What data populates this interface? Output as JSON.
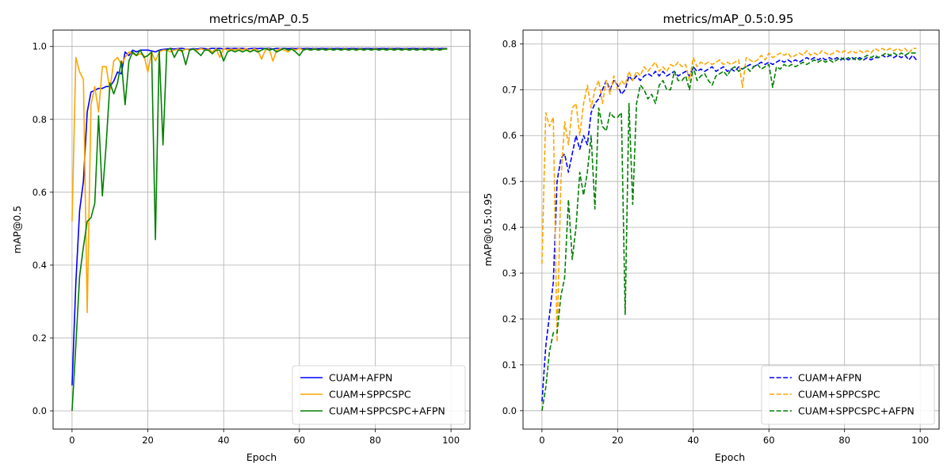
{
  "chart_data": [
    {
      "type": "line",
      "title": "metrics/mAP_0.5",
      "xlabel": "Epoch",
      "ylabel": "mAP@0.5",
      "xlim": [
        -5,
        105
      ],
      "ylim": [
        -0.05,
        1.045
      ],
      "xticks": [
        0,
        20,
        40,
        60,
        80,
        100
      ],
      "yticks": [
        0.0,
        0.2,
        0.4,
        0.6,
        0.8,
        1.0
      ],
      "grid": true,
      "legend_position": "lower-right",
      "series": [
        {
          "name": "CUAM+AFPN",
          "color": "#0000ff",
          "dash": "solid",
          "x_start": 0,
          "values": [
            0.07,
            0.35,
            0.55,
            0.63,
            0.82,
            0.875,
            0.88,
            0.885,
            0.885,
            0.89,
            0.89,
            0.905,
            0.93,
            0.925,
            0.985,
            0.975,
            0.99,
            0.985,
            0.99,
            0.99,
            0.99,
            0.988,
            0.985,
            0.99,
            0.992,
            0.993,
            0.994,
            0.993,
            0.994,
            0.995,
            0.993,
            0.992,
            0.994,
            0.993,
            0.995,
            0.994,
            0.993,
            0.995,
            0.994,
            0.995,
            0.993,
            0.995,
            0.994,
            0.995,
            0.994,
            0.995,
            0.993,
            0.994,
            0.995,
            0.994,
            0.995,
            0.994,
            0.995,
            0.993,
            0.995,
            0.994,
            0.995,
            0.994,
            0.995,
            0.994,
            0.995,
            0.994,
            0.995,
            0.994,
            0.995,
            0.994,
            0.995,
            0.994,
            0.995,
            0.994,
            0.995,
            0.994,
            0.995,
            0.994,
            0.995,
            0.994,
            0.995,
            0.994,
            0.995,
            0.994,
            0.995,
            0.994,
            0.995,
            0.994,
            0.995,
            0.994,
            0.995,
            0.994,
            0.995,
            0.994,
            0.995,
            0.994,
            0.995,
            0.994,
            0.995,
            0.994,
            0.995,
            0.994,
            0.995,
            0.994
          ]
        },
        {
          "name": "CUAM+SPPCSPC",
          "color": "#ffa500",
          "dash": "solid",
          "x_start": 0,
          "values": [
            0.52,
            0.97,
            0.93,
            0.91,
            0.27,
            0.84,
            0.89,
            0.82,
            0.945,
            0.945,
            0.88,
            0.96,
            0.97,
            0.95,
            0.97,
            0.985,
            0.98,
            0.975,
            0.98,
            0.975,
            0.93,
            0.985,
            0.96,
            0.985,
            0.99,
            0.99,
            0.985,
            0.99,
            0.993,
            0.985,
            0.994,
            0.99,
            0.993,
            0.99,
            0.994,
            0.99,
            0.993,
            0.985,
            0.994,
            0.97,
            0.995,
            0.99,
            0.993,
            0.99,
            0.994,
            0.99,
            0.995,
            0.985,
            0.994,
            0.99,
            0.965,
            0.99,
            0.994,
            0.96,
            0.99,
            0.994,
            0.99,
            0.985,
            0.994,
            0.99,
            0.995,
            0.99,
            0.994,
            0.99,
            0.995,
            0.99,
            0.994,
            0.99,
            0.995,
            0.99,
            0.994,
            0.99,
            0.995,
            0.99,
            0.994,
            0.99,
            0.995,
            0.99,
            0.994,
            0.99,
            0.995,
            0.99,
            0.994,
            0.99,
            0.995,
            0.99,
            0.994,
            0.99,
            0.995,
            0.99,
            0.994,
            0.99,
            0.995,
            0.99,
            0.994,
            0.99,
            0.995,
            0.99,
            0.994,
            0.993
          ]
        },
        {
          "name": "CUAM+SPPCSPC+AFPN",
          "color": "#008000",
          "dash": "solid",
          "x_start": 0,
          "values": [
            0.0,
            0.18,
            0.37,
            0.45,
            0.52,
            0.53,
            0.57,
            0.81,
            0.59,
            0.73,
            0.9,
            0.87,
            0.9,
            0.96,
            0.84,
            0.96,
            0.985,
            0.975,
            0.99,
            0.97,
            0.975,
            0.985,
            0.47,
            0.99,
            0.73,
            0.99,
            0.995,
            0.97,
            0.99,
            0.99,
            0.95,
            0.99,
            0.993,
            0.985,
            0.975,
            0.99,
            0.99,
            0.98,
            0.99,
            0.99,
            0.96,
            0.985,
            0.99,
            0.985,
            0.99,
            0.985,
            0.99,
            0.985,
            0.99,
            0.985,
            0.99,
            0.995,
            0.99,
            0.993,
            0.985,
            0.99,
            0.995,
            0.99,
            0.993,
            0.985,
            0.975,
            0.99,
            0.993,
            0.99,
            0.993,
            0.99,
            0.993,
            0.99,
            0.993,
            0.99,
            0.993,
            0.99,
            0.993,
            0.99,
            0.993,
            0.99,
            0.993,
            0.99,
            0.993,
            0.99,
            0.993,
            0.99,
            0.993,
            0.99,
            0.993,
            0.99,
            0.993,
            0.99,
            0.993,
            0.99,
            0.993,
            0.99,
            0.993,
            0.99,
            0.993,
            0.99,
            0.993,
            0.99,
            0.993,
            0.993
          ]
        }
      ]
    },
    {
      "type": "line",
      "title": "metrics/mAP_0.5:0.95",
      "xlabel": "Epoch",
      "ylabel": "mAP@0.5:0.95",
      "xlim": [
        -5,
        105
      ],
      "ylim": [
        -0.04,
        0.83
      ],
      "xticks": [
        0,
        20,
        40,
        60,
        80,
        100
      ],
      "yticks": [
        0.0,
        0.1,
        0.2,
        0.3,
        0.4,
        0.5,
        0.6,
        0.7,
        0.8
      ],
      "grid": true,
      "legend_position": "lower-right",
      "series": [
        {
          "name": "CUAM+AFPN",
          "color": "#0000ff",
          "dash": "dashed",
          "x_start": 0,
          "values": [
            0.02,
            0.14,
            0.21,
            0.28,
            0.5,
            0.55,
            0.56,
            0.52,
            0.56,
            0.6,
            0.57,
            0.6,
            0.58,
            0.65,
            0.67,
            0.68,
            0.7,
            0.72,
            0.7,
            0.72,
            0.71,
            0.69,
            0.7,
            0.73,
            0.72,
            0.73,
            0.72,
            0.73,
            0.735,
            0.73,
            0.74,
            0.73,
            0.74,
            0.73,
            0.735,
            0.74,
            0.73,
            0.735,
            0.74,
            0.73,
            0.75,
            0.74,
            0.745,
            0.74,
            0.745,
            0.75,
            0.74,
            0.745,
            0.75,
            0.74,
            0.745,
            0.74,
            0.75,
            0.745,
            0.75,
            0.755,
            0.75,
            0.755,
            0.76,
            0.755,
            0.76,
            0.755,
            0.76,
            0.765,
            0.76,
            0.765,
            0.76,
            0.765,
            0.76,
            0.765,
            0.77,
            0.765,
            0.77,
            0.765,
            0.77,
            0.765,
            0.77,
            0.765,
            0.77,
            0.765,
            0.77,
            0.765,
            0.77,
            0.765,
            0.77,
            0.765,
            0.77,
            0.765,
            0.77,
            0.77,
            0.775,
            0.77,
            0.775,
            0.77,
            0.775,
            0.77,
            0.775,
            0.765,
            0.775,
            0.765
          ]
        },
        {
          "name": "CUAM+SPPCSPC",
          "color": "#ffa500",
          "dash": "dashed",
          "x_start": 0,
          "values": [
            0.32,
            0.65,
            0.62,
            0.64,
            0.15,
            0.5,
            0.63,
            0.58,
            0.66,
            0.67,
            0.6,
            0.67,
            0.71,
            0.66,
            0.7,
            0.72,
            0.67,
            0.72,
            0.69,
            0.73,
            0.7,
            0.72,
            0.71,
            0.74,
            0.72,
            0.74,
            0.73,
            0.75,
            0.74,
            0.75,
            0.76,
            0.74,
            0.75,
            0.74,
            0.755,
            0.75,
            0.76,
            0.75,
            0.755,
            0.72,
            0.77,
            0.75,
            0.76,
            0.755,
            0.76,
            0.755,
            0.76,
            0.765,
            0.755,
            0.76,
            0.755,
            0.76,
            0.765,
            0.705,
            0.77,
            0.765,
            0.76,
            0.765,
            0.775,
            0.765,
            0.78,
            0.77,
            0.775,
            0.78,
            0.775,
            0.78,
            0.77,
            0.775,
            0.78,
            0.775,
            0.785,
            0.775,
            0.78,
            0.775,
            0.785,
            0.78,
            0.775,
            0.78,
            0.785,
            0.78,
            0.785,
            0.78,
            0.785,
            0.78,
            0.785,
            0.78,
            0.785,
            0.78,
            0.79,
            0.785,
            0.79,
            0.785,
            0.79,
            0.785,
            0.79,
            0.785,
            0.79,
            0.78,
            0.79,
            0.79
          ]
        },
        {
          "name": "CUAM+SPPCSPC+AFPN",
          "color": "#008000",
          "dash": "dashed",
          "x_start": 0,
          "values": [
            0.0,
            0.05,
            0.13,
            0.17,
            0.17,
            0.25,
            0.29,
            0.46,
            0.33,
            0.4,
            0.52,
            0.47,
            0.52,
            0.6,
            0.44,
            0.66,
            0.62,
            0.61,
            0.65,
            0.64,
            0.64,
            0.65,
            0.21,
            0.67,
            0.45,
            0.67,
            0.71,
            0.7,
            0.68,
            0.69,
            0.67,
            0.71,
            0.72,
            0.7,
            0.7,
            0.74,
            0.72,
            0.72,
            0.73,
            0.7,
            0.75,
            0.72,
            0.73,
            0.735,
            0.72,
            0.71,
            0.73,
            0.735,
            0.74,
            0.73,
            0.745,
            0.75,
            0.74,
            0.745,
            0.75,
            0.74,
            0.75,
            0.755,
            0.745,
            0.75,
            0.755,
            0.705,
            0.75,
            0.745,
            0.755,
            0.75,
            0.755,
            0.75,
            0.755,
            0.76,
            0.755,
            0.76,
            0.765,
            0.76,
            0.765,
            0.76,
            0.765,
            0.76,
            0.765,
            0.77,
            0.765,
            0.77,
            0.765,
            0.77,
            0.765,
            0.77,
            0.775,
            0.77,
            0.775,
            0.77,
            0.775,
            0.78,
            0.775,
            0.78,
            0.775,
            0.78,
            0.775,
            0.78,
            0.78,
            0.78
          ]
        }
      ]
    }
  ]
}
